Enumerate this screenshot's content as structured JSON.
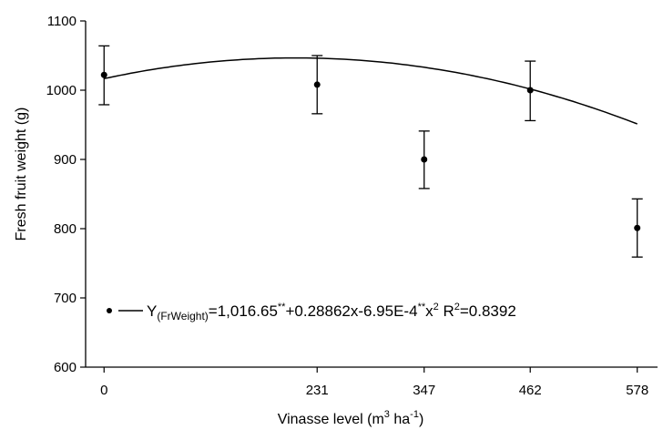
{
  "chart_data": {
    "type": "scatter",
    "xlabel": {
      "main": "Vinasse level (m",
      "sup1": "3",
      "mid": " ha",
      "sup2": "-1",
      "end": ")"
    },
    "ylabel": "Fresh fruit weight (g)",
    "ylim": [
      600,
      1100
    ],
    "yticks": [
      600,
      700,
      800,
      900,
      1000,
      1100
    ],
    "xlim": [
      -20,
      600
    ],
    "xticks": [
      0,
      231,
      347,
      462,
      578
    ],
    "grid": false,
    "series": [
      {
        "x": [
          0,
          231,
          347,
          462,
          578
        ],
        "y": [
          1022,
          1008,
          900,
          1000,
          801
        ],
        "error_low": [
          979,
          966,
          858,
          956,
          759
        ],
        "error_high": [
          1064,
          1050,
          941,
          1042,
          843
        ]
      }
    ],
    "fit": {
      "type": "quadratic",
      "intercept": 1016.65,
      "linear": 0.28862,
      "quadratic": -0.000695,
      "x_range": [
        0,
        578
      ]
    },
    "legend": {
      "position": "bottom-left",
      "y_main": "Y",
      "y_sub": "(FrWeight)",
      "eq_part1": "=1,016.65",
      "sup_a": "**",
      "eq_part2": "+0.28862x-6.95E-4",
      "sup_b": "**",
      "eq_part3": "x",
      "sup_c": "2",
      "eq_part4": " R",
      "sup_d": "2",
      "eq_part5": "=0.8392"
    }
  }
}
